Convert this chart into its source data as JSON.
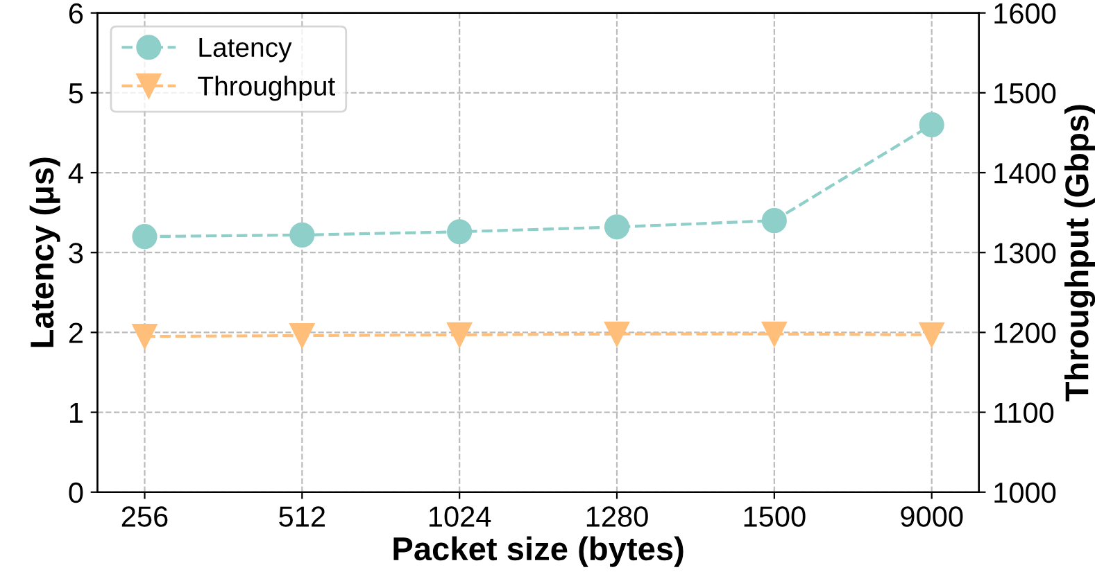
{
  "chart_data": {
    "type": "line",
    "xlabel": "Packet size (bytes)",
    "ylabel": "Latency (μs)",
    "y2label": "Throughput (Gbps)",
    "categories": [
      "256",
      "512",
      "1024",
      "1280",
      "1500",
      "9000"
    ],
    "series": [
      {
        "name": "Latency",
        "color": "#8ecfc9",
        "values": [
          3.2,
          3.22,
          3.26,
          3.32,
          3.4,
          4.6
        ],
        "marker": "circle"
      },
      {
        "name": "Throughput",
        "color": "#ffbe7a",
        "values": [
          1195,
          1196,
          1197,
          1198,
          1198,
          1197
        ],
        "axis": "y2",
        "marker": "triangle"
      }
    ],
    "ylim": [
      0,
      6
    ],
    "yticks": [
      0,
      1,
      2,
      3,
      4,
      5,
      6
    ],
    "y2lim": [
      1000,
      1600
    ],
    "y2ticks": [
      1000,
      1100,
      1200,
      1300,
      1400,
      1500,
      1600
    ],
    "grid": true,
    "legend": "top left",
    "line_style": "dashed"
  }
}
